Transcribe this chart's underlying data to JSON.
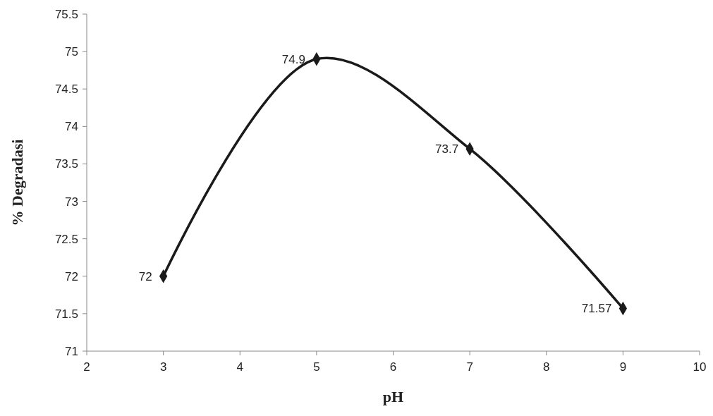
{
  "chart_data": {
    "type": "line",
    "xlabel": "pH",
    "ylabel": "% Degradasi",
    "x": [
      3,
      5,
      7,
      9
    ],
    "series": [
      {
        "color": "#1a1a1a",
        "values": [
          72,
          74.9,
          73.7,
          71.57
        ]
      }
    ],
    "xlim": [
      2,
      10
    ],
    "xticks": [
      2,
      3,
      4,
      5,
      6,
      7,
      8,
      9,
      10
    ],
    "ylim": [
      71,
      75.5
    ],
    "yticks": [
      71,
      71.5,
      72,
      72.5,
      73,
      73.5,
      74,
      74.5,
      75,
      75.5
    ],
    "grid": false,
    "marker": "diamond",
    "line_style": "solid",
    "data_labels": true
  }
}
